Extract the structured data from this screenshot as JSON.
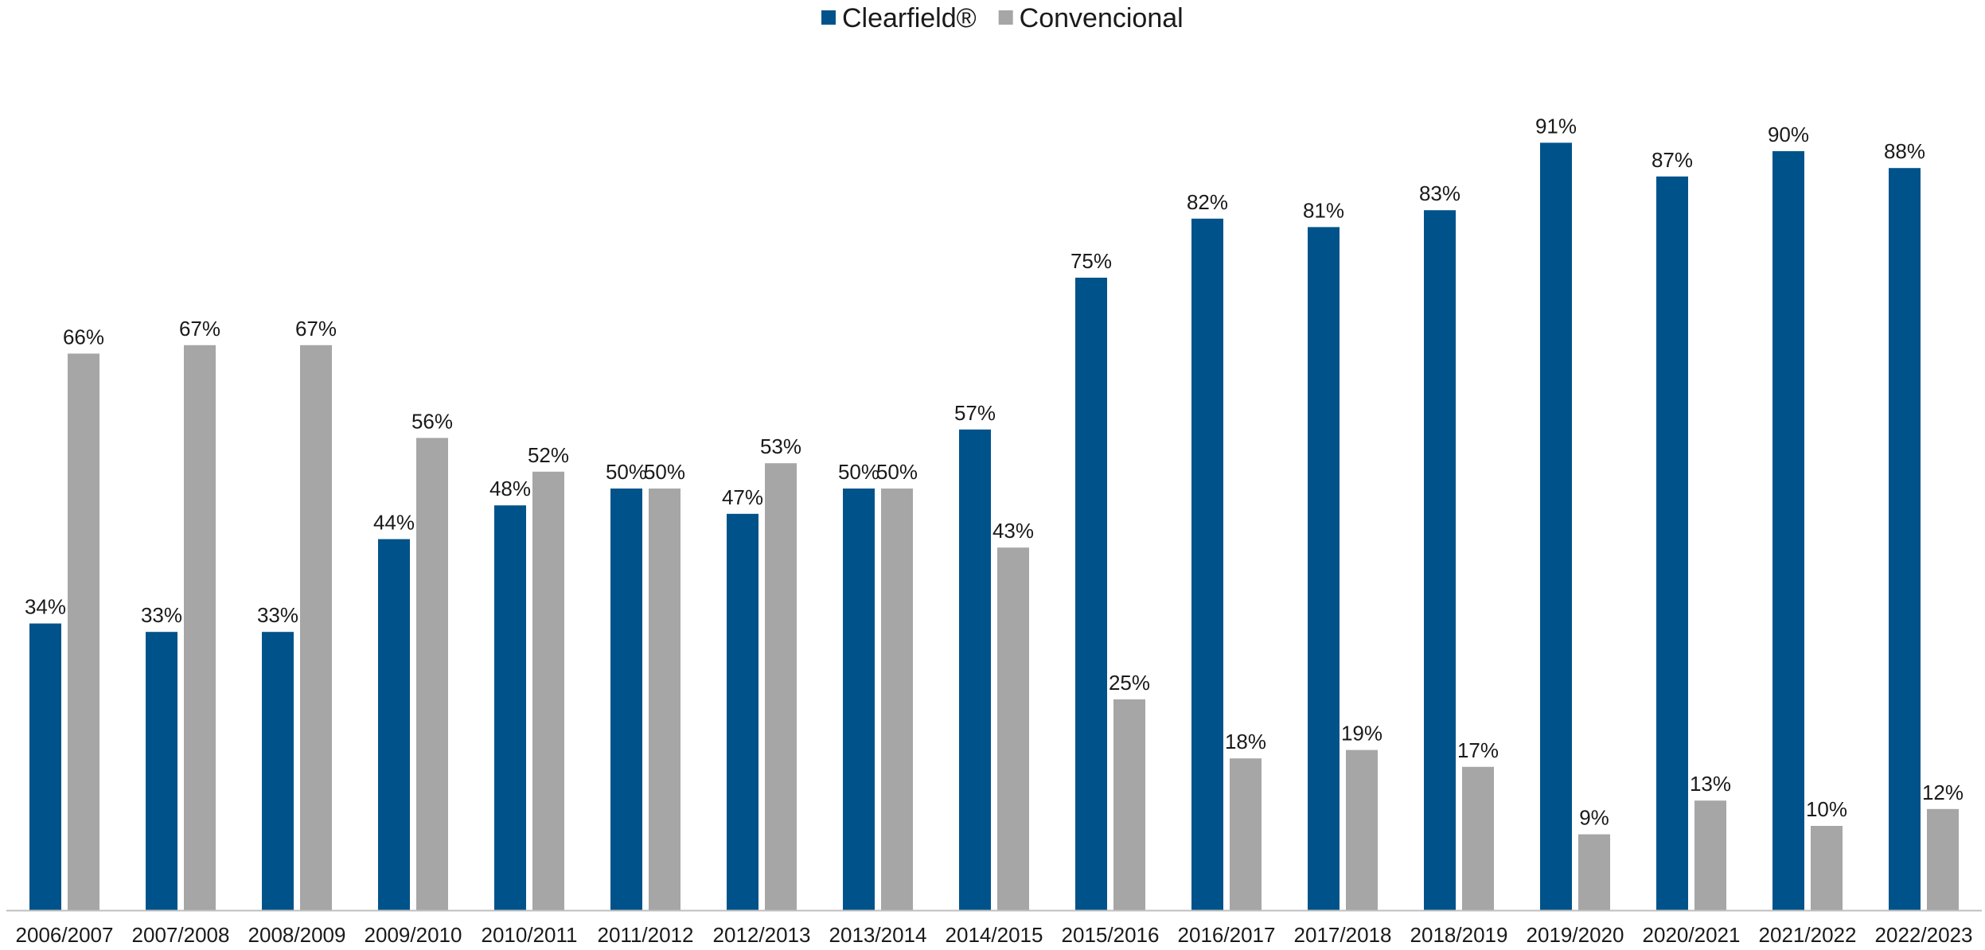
{
  "chart_data": {
    "type": "bar",
    "categories": [
      "2006/2007",
      "2007/2008",
      "2008/2009",
      "2009/2010",
      "2010/2011",
      "2011/2012",
      "2012/2013",
      "2013/2014",
      "2014/2015",
      "2015/2016",
      "2016/2017",
      "2017/2018",
      "2018/2019",
      "2019/2020",
      "2020/2021",
      "2021/2022",
      "2022/2023"
    ],
    "series": [
      {
        "name": "Clearfield®",
        "color": "#00538a",
        "values": [
          34,
          33,
          33,
          44,
          48,
          50,
          47,
          50,
          57,
          75,
          82,
          81,
          83,
          91,
          87,
          90,
          88
        ],
        "labels": [
          "34%",
          "33%",
          "33%",
          "44%",
          "48%",
          "50%",
          "47%",
          "50%",
          "57%",
          "75%",
          "82%",
          "81%",
          "83%",
          "91%",
          "87%",
          "90%",
          "88%"
        ]
      },
      {
        "name": "Convencional",
        "color": "#a6a6a6",
        "values": [
          66,
          67,
          67,
          56,
          52,
          50,
          53,
          50,
          43,
          25,
          18,
          19,
          17,
          9,
          13,
          10,
          12
        ],
        "labels": [
          "66%",
          "67%",
          "67%",
          "56%",
          "52%",
          "50%",
          "53%",
          "50%",
          "43%",
          "25%",
          "18%",
          "19%",
          "17%",
          "9%",
          "13%",
          "10%",
          "12%"
        ]
      }
    ],
    "title": "",
    "xlabel": "",
    "ylabel": "",
    "ylim": [
      0,
      100
    ],
    "grid": false,
    "legend_position": "top-center",
    "axis_color": "#bfbfbf"
  }
}
